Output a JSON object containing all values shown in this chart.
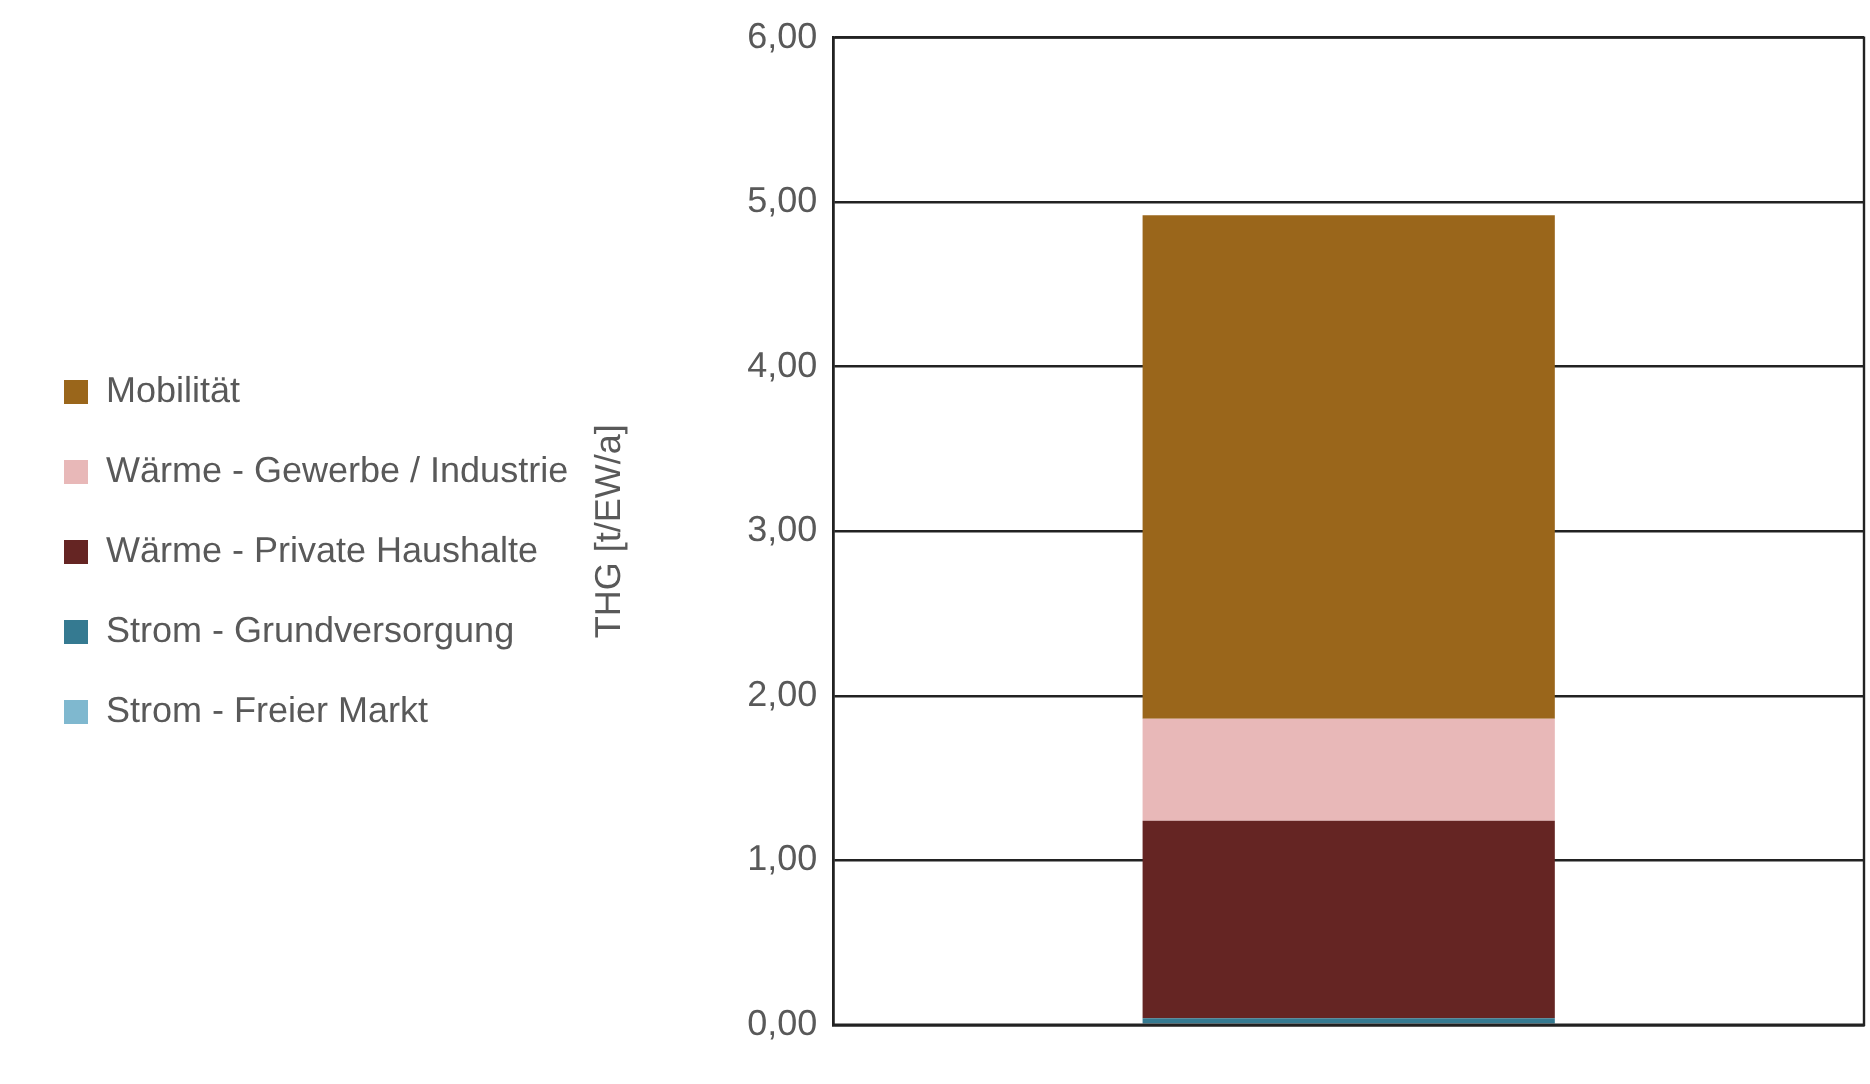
{
  "chart_data": {
    "type": "bar",
    "stacked": true,
    "ylabel": "THG [t/EW/a]",
    "categories": [
      null
    ],
    "series": [
      {
        "name": "Strom - Freier Markt",
        "color": "#7fb8cf",
        "values": [
          0
        ]
      },
      {
        "name": "Strom - Grundversorgung",
        "color": "#357a91",
        "values": [
          0.04
        ]
      },
      {
        "name": "Wärme - Private Haushalte",
        "color": "#652523",
        "values": [
          1.2
        ]
      },
      {
        "name": "Wärme - Gewerbe / Industrie",
        "color": "#e8b8b8",
        "values": [
          0.62
        ]
      },
      {
        "name": "Mobilität",
        "color": "#9a661b",
        "values": [
          3.06
        ]
      }
    ],
    "ylim": [
      0,
      6
    ],
    "yticks": [
      {
        "value": 0,
        "label": "0,00"
      },
      {
        "value": 1,
        "label": "1,00"
      },
      {
        "value": 2,
        "label": "2,00"
      },
      {
        "value": 3,
        "label": "3,00"
      },
      {
        "value": 4,
        "label": "4,00"
      },
      {
        "value": 5,
        "label": "5,00"
      },
      {
        "value": 6,
        "label": "6,00"
      }
    ],
    "grid": "y",
    "legend": "left"
  }
}
